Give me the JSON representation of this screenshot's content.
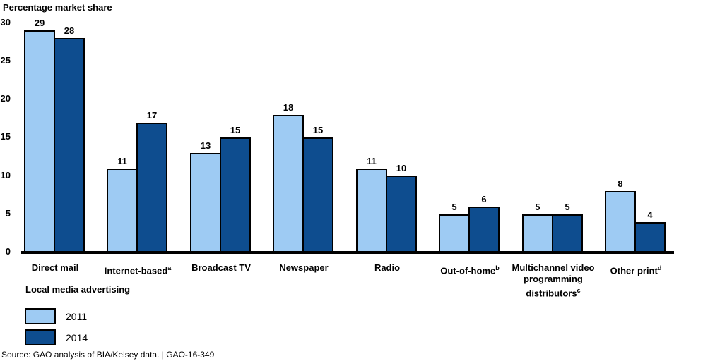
{
  "chart_data": {
    "type": "bar",
    "title": "Percentage market share",
    "xlabel": "Local media advertising",
    "categories": [
      {
        "label": "Direct mail",
        "sup": "",
        "lines": [
          "Direct mail"
        ]
      },
      {
        "label": "Internet-based",
        "sup": "a",
        "lines": [
          "Internet-based"
        ]
      },
      {
        "label": "Broadcast TV",
        "sup": "",
        "lines": [
          "Broadcast TV"
        ]
      },
      {
        "label": "Newspaper",
        "sup": "",
        "lines": [
          "Newspaper"
        ]
      },
      {
        "label": "Radio",
        "sup": "",
        "lines": [
          "Radio"
        ]
      },
      {
        "label": "Out-of-home",
        "sup": "b",
        "lines": [
          "Out-of-home"
        ]
      },
      {
        "label": "Multichannel video programming distributors",
        "sup": "c",
        "lines": [
          "Multichannel video",
          "programming",
          "distributors"
        ]
      },
      {
        "label": "Other print",
        "sup": "d",
        "lines": [
          "Other print"
        ]
      }
    ],
    "series": [
      {
        "name": "2011",
        "color": "#9ECBF3",
        "values": [
          29,
          11,
          13,
          18,
          11,
          5,
          5,
          8
        ]
      },
      {
        "name": "2014",
        "color": "#0E4D8F",
        "values": [
          28,
          17,
          15,
          15,
          10,
          6,
          5,
          4
        ]
      }
    ],
    "yticks": [
      0,
      5,
      10,
      15,
      20,
      25,
      30
    ],
    "ylim": [
      0,
      30
    ],
    "grid": false,
    "bar_border_color": "#000000",
    "legend_position": "bottom-left"
  },
  "source_line": "Source: GAO analysis of BIA/Kelsey data.  |  GAO-16-349"
}
